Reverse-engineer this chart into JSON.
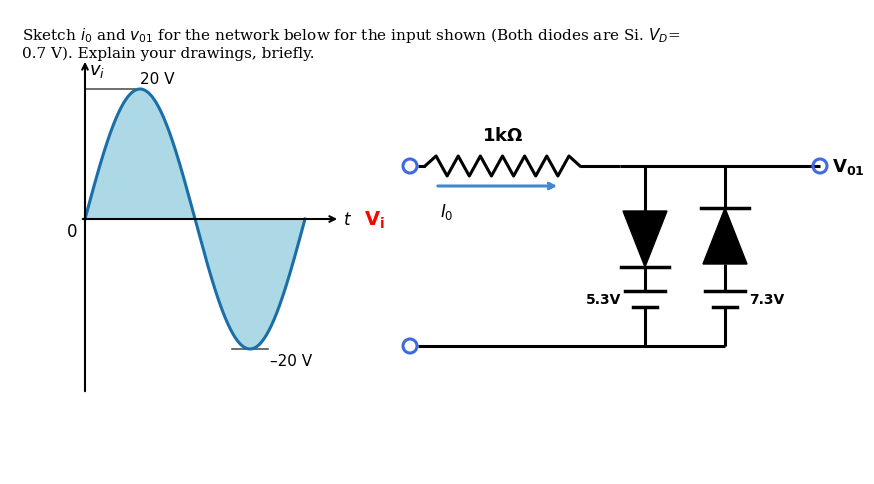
{
  "bg_color": "#ffffff",
  "waveform_fill_color": "#add8e6",
  "waveform_line_color": "#1a6fa8",
  "label_20v": "20 V",
  "label_neg20v": "–20 V",
  "label_vi_axis": "v_i",
  "label_t": "t",
  "label_0": "0",
  "resistor_label": "1kΩ",
  "current_label": "I_0",
  "vi_circuit_label": "V_i",
  "v01_label": "V_{01}",
  "v53_label": "5.3V",
  "v73_label": "7.3V",
  "arrow_color": "#4488cc",
  "circuit_line_color": "#000000",
  "diode_color": "#000000",
  "node_color": "#4169E1",
  "title1_normal": "Sketch ",
  "title1_italic_i": "i",
  "title1_sub_0": "0",
  "title1_and": " and ",
  "title1_italic_v": "v",
  "title1_sub_01": "01",
  "title1_rest": " for the network below for the input shown (Both diodes are Si. V",
  "title1_sub_D": "D",
  "title1_eq": "=",
  "title2": "0.7 V). Explain your drawings, briefly."
}
